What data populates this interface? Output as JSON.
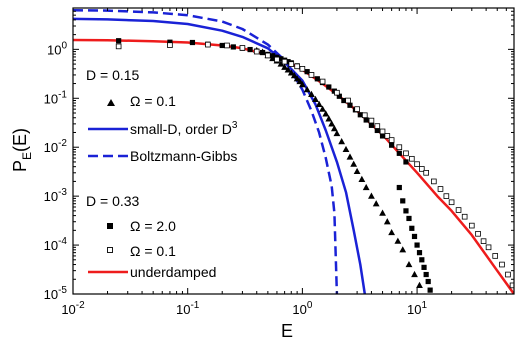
{
  "chart_data": {
    "type": "scatter",
    "xlabel": "E",
    "ylabel_main": "P",
    "ylabel_sub": "E",
    "ylabel_tail": "(E)",
    "x_scale": "log",
    "y_scale": "log",
    "xlim": [
      0.01,
      70
    ],
    "ylim": [
      1e-05,
      7
    ],
    "x_ticks": [
      {
        "value": 0.01,
        "base": "10",
        "exp": "-2"
      },
      {
        "value": 0.1,
        "base": "10",
        "exp": "-1"
      },
      {
        "value": 1,
        "base": "10",
        "exp": "0"
      },
      {
        "value": 10,
        "base": "10",
        "exp": "1"
      }
    ],
    "y_ticks": [
      {
        "value": 1e-05,
        "base": "10",
        "exp": "-5"
      },
      {
        "value": 0.0001,
        "base": "10",
        "exp": "-4"
      },
      {
        "value": 0.001,
        "base": "10",
        "exp": "-3"
      },
      {
        "value": 0.01,
        "base": "10",
        "exp": "-2"
      },
      {
        "value": 0.1,
        "base": "10",
        "exp": "-1"
      },
      {
        "value": 1,
        "base": "10",
        "exp": "0"
      }
    ],
    "grid": false,
    "legend": {
      "group1_title": "D = 0.15",
      "group2_title": "D = 0.33",
      "entries": [
        {
          "key": "tri",
          "prefix": "Ω",
          "text": " = 0.1"
        },
        {
          "key": "smallD",
          "text": "small-D, order D",
          "sup": "3"
        },
        {
          "key": "bg",
          "text": "Boltzmann-Gibbs"
        },
        {
          "key": "sqf",
          "prefix": "Ω",
          "text": " = 2.0"
        },
        {
          "key": "sqo",
          "prefix": "Ω",
          "text": " = 0.1"
        },
        {
          "key": "under",
          "text": "underdamped"
        }
      ]
    },
    "colors": {
      "blue": "#1a22d6",
      "red": "#ee1c1c",
      "black": "#000000"
    },
    "series": [
      {
        "key": "smallD",
        "style": "solid-blue-line",
        "points": [
          [
            0.01,
            4.2
          ],
          [
            0.02,
            4.1
          ],
          [
            0.05,
            3.8
          ],
          [
            0.1,
            3.3
          ],
          [
            0.2,
            2.4
          ],
          [
            0.3,
            1.8
          ],
          [
            0.5,
            1.05
          ],
          [
            0.7,
            0.55
          ],
          [
            1.0,
            0.23
          ],
          [
            1.3,
            0.075
          ],
          [
            1.6,
            0.022
          ],
          [
            2.0,
            0.005
          ],
          [
            2.4,
            0.0012
          ],
          [
            2.8,
            0.0002
          ],
          [
            3.2,
            4e-05
          ],
          [
            3.5,
            1e-05
          ]
        ]
      },
      {
        "key": "bg",
        "style": "dashed-blue-line",
        "points": [
          [
            0.01,
            6.3
          ],
          [
            0.02,
            6.2
          ],
          [
            0.05,
            5.7
          ],
          [
            0.1,
            5.0
          ],
          [
            0.2,
            3.7
          ],
          [
            0.3,
            2.6
          ],
          [
            0.5,
            1.25
          ],
          [
            0.7,
            0.6
          ],
          [
            1.0,
            0.15
          ],
          [
            1.2,
            0.055
          ],
          [
            1.4,
            0.02
          ],
          [
            1.6,
            0.006
          ],
          [
            1.8,
            0.0016
          ],
          [
            1.9,
            0.00045
          ],
          [
            2.0,
            1e-05
          ]
        ]
      },
      {
        "key": "under",
        "style": "solid-red-line",
        "points": [
          [
            0.01,
            1.55
          ],
          [
            0.02,
            1.53
          ],
          [
            0.05,
            1.47
          ],
          [
            0.1,
            1.38
          ],
          [
            0.2,
            1.2
          ],
          [
            0.3,
            1.05
          ],
          [
            0.5,
            0.78
          ],
          [
            0.7,
            0.6
          ],
          [
            1,
            0.38
          ],
          [
            1.5,
            0.2
          ],
          [
            2,
            0.12
          ],
          [
            3,
            0.055
          ],
          [
            5,
            0.018
          ],
          [
            7,
            0.0075
          ],
          [
            10,
            0.003
          ],
          [
            15,
            0.001
          ],
          [
            20,
            0.0005
          ],
          [
            30,
            0.00016
          ],
          [
            50,
            3e-05
          ],
          [
            70,
            1e-05
          ]
        ]
      },
      {
        "key": "tri",
        "style": "filled-triangles",
        "points": [
          [
            0.4,
            0.95
          ],
          [
            0.45,
            0.88
          ],
          [
            0.5,
            0.75
          ],
          [
            0.55,
            0.65
          ],
          [
            0.6,
            0.58
          ],
          [
            0.65,
            0.5
          ],
          [
            0.7,
            0.43
          ],
          [
            0.75,
            0.38
          ],
          [
            0.8,
            0.33
          ],
          [
            0.85,
            0.29
          ],
          [
            0.9,
            0.25
          ],
          [
            0.95,
            0.22
          ],
          [
            1.0,
            0.19
          ],
          [
            1.1,
            0.15
          ],
          [
            1.2,
            0.12
          ],
          [
            1.3,
            0.095
          ],
          [
            1.4,
            0.075
          ],
          [
            1.5,
            0.06
          ],
          [
            1.6,
            0.048
          ],
          [
            1.7,
            0.038
          ],
          [
            1.8,
            0.03
          ],
          [
            1.9,
            0.024
          ],
          [
            2.0,
            0.019
          ],
          [
            2.2,
            0.013
          ],
          [
            2.4,
            0.009
          ],
          [
            2.6,
            0.0063
          ],
          [
            2.8,
            0.0045
          ],
          [
            3.0,
            0.0032
          ],
          [
            3.3,
            0.0022
          ],
          [
            3.6,
            0.0015
          ],
          [
            4.0,
            0.001
          ],
          [
            4.4,
            0.0007
          ],
          [
            5.0,
            0.00045
          ],
          [
            5.5,
            0.0003
          ],
          [
            6.0,
            0.00018
          ],
          [
            6.8,
            0.00012
          ],
          [
            7.5,
            8e-05
          ],
          [
            8.5,
            4e-05
          ],
          [
            9.5,
            2.5e-05
          ],
          [
            10.5,
            1.5e-05
          ]
        ]
      },
      {
        "key": "sqf",
        "style": "filled-squares",
        "points": [
          [
            0.025,
            1.5
          ],
          [
            0.07,
            1.4
          ],
          [
            0.11,
            1.38
          ],
          [
            0.15,
            1.27
          ],
          [
            0.2,
            1.2
          ],
          [
            0.25,
            1.12
          ],
          [
            0.3,
            1.06
          ],
          [
            0.35,
            0.99
          ],
          [
            0.4,
            0.92
          ],
          [
            0.45,
            0.86
          ],
          [
            0.5,
            0.79
          ],
          [
            0.55,
            0.74
          ],
          [
            0.6,
            0.69
          ],
          [
            0.65,
            0.64
          ],
          [
            0.7,
            0.6
          ],
          [
            0.75,
            0.56
          ],
          [
            0.8,
            0.53
          ],
          [
            0.9,
            0.46
          ],
          [
            1.0,
            0.4
          ],
          [
            1.1,
            0.35
          ],
          [
            1.2,
            0.3
          ],
          [
            1.35,
            0.25
          ],
          [
            1.5,
            0.21
          ],
          [
            1.7,
            0.17
          ],
          [
            1.9,
            0.14
          ],
          [
            2.1,
            0.11
          ],
          [
            2.3,
            0.09
          ],
          [
            2.6,
            0.072
          ],
          [
            2.9,
            0.058
          ],
          [
            3.2,
            0.046
          ],
          [
            3.6,
            0.036
          ],
          [
            4.0,
            0.028
          ],
          [
            4.5,
            0.022
          ],
          [
            5.0,
            0.017
          ],
          [
            6.0,
            0.011
          ],
          [
            7.0,
            0.0075
          ],
          [
            8.0,
            0.005
          ],
          [
            7.0,
            0.0015
          ],
          [
            7.5,
            0.0008
          ],
          [
            8.0,
            0.0005
          ],
          [
            8.5,
            0.00035
          ],
          [
            9.0,
            0.00022
          ],
          [
            9.5,
            0.00015
          ],
          [
            10.0,
            0.0001
          ],
          [
            10.5,
            7e-05
          ],
          [
            11.0,
            5e-05
          ],
          [
            11.5,
            3.5e-05
          ],
          [
            12.0,
            2.5e-05
          ],
          [
            12.5,
            1.8e-05
          ],
          [
            13.0,
            1.2e-05
          ]
        ]
      },
      {
        "key": "sqo",
        "style": "open-squares",
        "points": [
          [
            0.025,
            1.15
          ],
          [
            0.07,
            1.22
          ],
          [
            0.15,
            1.25
          ],
          [
            0.22,
            1.2
          ],
          [
            0.3,
            1.07
          ],
          [
            0.4,
            0.9
          ],
          [
            0.5,
            0.75
          ],
          [
            0.6,
            0.62
          ],
          [
            0.7,
            0.56
          ],
          [
            0.8,
            0.5
          ],
          [
            0.9,
            0.45
          ],
          [
            1.0,
            0.4
          ],
          [
            1.2,
            0.3
          ],
          [
            1.5,
            0.22
          ],
          [
            2.0,
            0.13
          ],
          [
            2.5,
            0.09
          ],
          [
            3.0,
            0.06
          ],
          [
            3.5,
            0.045
          ],
          [
            4.0,
            0.035
          ],
          [
            4.5,
            0.027
          ],
          [
            5.0,
            0.021
          ],
          [
            5.5,
            0.017
          ],
          [
            6.0,
            0.014
          ],
          [
            7.0,
            0.01
          ],
          [
            8.0,
            0.0075
          ],
          [
            9.0,
            0.0058
          ],
          [
            10.0,
            0.0045
          ],
          [
            11.0,
            0.0036
          ],
          [
            12.0,
            0.003
          ],
          [
            14.0,
            0.002
          ],
          [
            16.0,
            0.0014
          ],
          [
            18.0,
            0.001
          ],
          [
            20.0,
            0.00075
          ],
          [
            23.0,
            0.00052
          ],
          [
            26.0,
            0.00038
          ],
          [
            30.0,
            0.00025
          ],
          [
            34.0,
            0.00017
          ],
          [
            38.0,
            0.00012
          ],
          [
            42.0,
            9e-05
          ],
          [
            48.0,
            6e-05
          ],
          [
            55.0,
            4e-05
          ],
          [
            62.0,
            2.5e-05
          ],
          [
            68.0,
            1.5e-05
          ]
        ]
      }
    ]
  }
}
